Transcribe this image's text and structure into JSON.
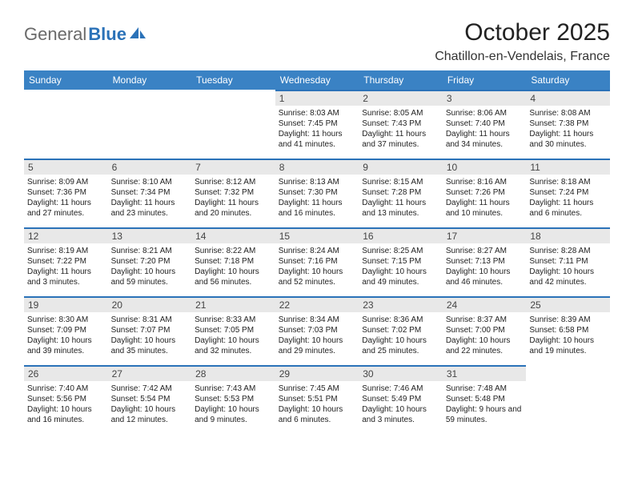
{
  "logo": {
    "part1": "General",
    "part2": "Blue"
  },
  "title": "October 2025",
  "location": "Chatillon-en-Vendelais, France",
  "theme": {
    "header_bg": "#3a82c4",
    "header_fg": "#ffffff",
    "day_border": "#2b72b8",
    "daynum_bg": "#e8e8e8",
    "page_bg": "#ffffff",
    "title_fontsize": 30,
    "location_fontsize": 16,
    "th_fontsize": 12,
    "daynum_fontsize": 12,
    "body_fontsize": 10
  },
  "weekdays": [
    "Sunday",
    "Monday",
    "Tuesday",
    "Wednesday",
    "Thursday",
    "Friday",
    "Saturday"
  ],
  "grid": [
    [
      null,
      null,
      null,
      {
        "n": "1",
        "sr": "Sunrise: 8:03 AM",
        "ss": "Sunset: 7:45 PM",
        "dl": "Daylight: 11 hours and 41 minutes."
      },
      {
        "n": "2",
        "sr": "Sunrise: 8:05 AM",
        "ss": "Sunset: 7:43 PM",
        "dl": "Daylight: 11 hours and 37 minutes."
      },
      {
        "n": "3",
        "sr": "Sunrise: 8:06 AM",
        "ss": "Sunset: 7:40 PM",
        "dl": "Daylight: 11 hours and 34 minutes."
      },
      {
        "n": "4",
        "sr": "Sunrise: 8:08 AM",
        "ss": "Sunset: 7:38 PM",
        "dl": "Daylight: 11 hours and 30 minutes."
      }
    ],
    [
      {
        "n": "5",
        "sr": "Sunrise: 8:09 AM",
        "ss": "Sunset: 7:36 PM",
        "dl": "Daylight: 11 hours and 27 minutes."
      },
      {
        "n": "6",
        "sr": "Sunrise: 8:10 AM",
        "ss": "Sunset: 7:34 PM",
        "dl": "Daylight: 11 hours and 23 minutes."
      },
      {
        "n": "7",
        "sr": "Sunrise: 8:12 AM",
        "ss": "Sunset: 7:32 PM",
        "dl": "Daylight: 11 hours and 20 minutes."
      },
      {
        "n": "8",
        "sr": "Sunrise: 8:13 AM",
        "ss": "Sunset: 7:30 PM",
        "dl": "Daylight: 11 hours and 16 minutes."
      },
      {
        "n": "9",
        "sr": "Sunrise: 8:15 AM",
        "ss": "Sunset: 7:28 PM",
        "dl": "Daylight: 11 hours and 13 minutes."
      },
      {
        "n": "10",
        "sr": "Sunrise: 8:16 AM",
        "ss": "Sunset: 7:26 PM",
        "dl": "Daylight: 11 hours and 10 minutes."
      },
      {
        "n": "11",
        "sr": "Sunrise: 8:18 AM",
        "ss": "Sunset: 7:24 PM",
        "dl": "Daylight: 11 hours and 6 minutes."
      }
    ],
    [
      {
        "n": "12",
        "sr": "Sunrise: 8:19 AM",
        "ss": "Sunset: 7:22 PM",
        "dl": "Daylight: 11 hours and 3 minutes."
      },
      {
        "n": "13",
        "sr": "Sunrise: 8:21 AM",
        "ss": "Sunset: 7:20 PM",
        "dl": "Daylight: 10 hours and 59 minutes."
      },
      {
        "n": "14",
        "sr": "Sunrise: 8:22 AM",
        "ss": "Sunset: 7:18 PM",
        "dl": "Daylight: 10 hours and 56 minutes."
      },
      {
        "n": "15",
        "sr": "Sunrise: 8:24 AM",
        "ss": "Sunset: 7:16 PM",
        "dl": "Daylight: 10 hours and 52 minutes."
      },
      {
        "n": "16",
        "sr": "Sunrise: 8:25 AM",
        "ss": "Sunset: 7:15 PM",
        "dl": "Daylight: 10 hours and 49 minutes."
      },
      {
        "n": "17",
        "sr": "Sunrise: 8:27 AM",
        "ss": "Sunset: 7:13 PM",
        "dl": "Daylight: 10 hours and 46 minutes."
      },
      {
        "n": "18",
        "sr": "Sunrise: 8:28 AM",
        "ss": "Sunset: 7:11 PM",
        "dl": "Daylight: 10 hours and 42 minutes."
      }
    ],
    [
      {
        "n": "19",
        "sr": "Sunrise: 8:30 AM",
        "ss": "Sunset: 7:09 PM",
        "dl": "Daylight: 10 hours and 39 minutes."
      },
      {
        "n": "20",
        "sr": "Sunrise: 8:31 AM",
        "ss": "Sunset: 7:07 PM",
        "dl": "Daylight: 10 hours and 35 minutes."
      },
      {
        "n": "21",
        "sr": "Sunrise: 8:33 AM",
        "ss": "Sunset: 7:05 PM",
        "dl": "Daylight: 10 hours and 32 minutes."
      },
      {
        "n": "22",
        "sr": "Sunrise: 8:34 AM",
        "ss": "Sunset: 7:03 PM",
        "dl": "Daylight: 10 hours and 29 minutes."
      },
      {
        "n": "23",
        "sr": "Sunrise: 8:36 AM",
        "ss": "Sunset: 7:02 PM",
        "dl": "Daylight: 10 hours and 25 minutes."
      },
      {
        "n": "24",
        "sr": "Sunrise: 8:37 AM",
        "ss": "Sunset: 7:00 PM",
        "dl": "Daylight: 10 hours and 22 minutes."
      },
      {
        "n": "25",
        "sr": "Sunrise: 8:39 AM",
        "ss": "Sunset: 6:58 PM",
        "dl": "Daylight: 10 hours and 19 minutes."
      }
    ],
    [
      {
        "n": "26",
        "sr": "Sunrise: 7:40 AM",
        "ss": "Sunset: 5:56 PM",
        "dl": "Daylight: 10 hours and 16 minutes."
      },
      {
        "n": "27",
        "sr": "Sunrise: 7:42 AM",
        "ss": "Sunset: 5:54 PM",
        "dl": "Daylight: 10 hours and 12 minutes."
      },
      {
        "n": "28",
        "sr": "Sunrise: 7:43 AM",
        "ss": "Sunset: 5:53 PM",
        "dl": "Daylight: 10 hours and 9 minutes."
      },
      {
        "n": "29",
        "sr": "Sunrise: 7:45 AM",
        "ss": "Sunset: 5:51 PM",
        "dl": "Daylight: 10 hours and 6 minutes."
      },
      {
        "n": "30",
        "sr": "Sunrise: 7:46 AM",
        "ss": "Sunset: 5:49 PM",
        "dl": "Daylight: 10 hours and 3 minutes."
      },
      {
        "n": "31",
        "sr": "Sunrise: 7:48 AM",
        "ss": "Sunset: 5:48 PM",
        "dl": "Daylight: 9 hours and 59 minutes."
      },
      null
    ]
  ]
}
